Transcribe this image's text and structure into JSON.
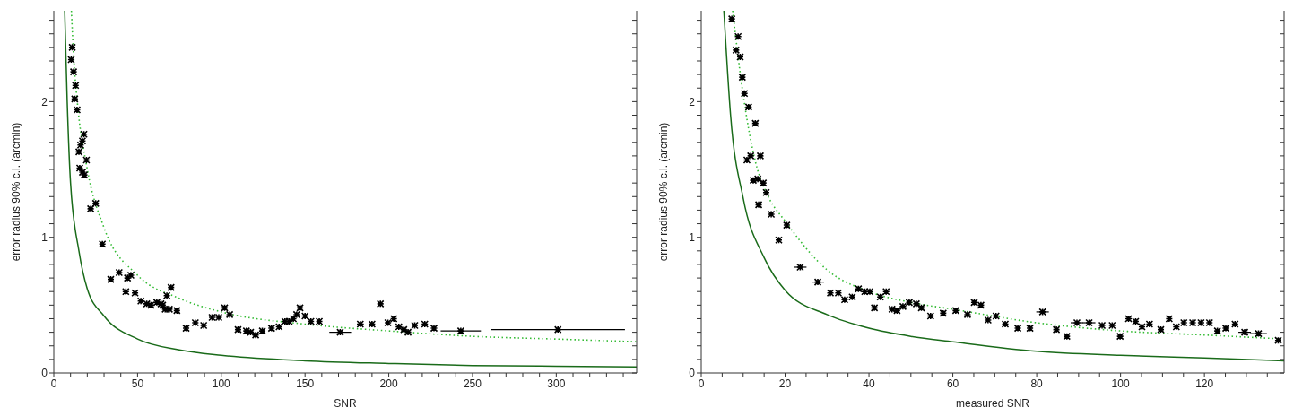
{
  "chart_data": [
    {
      "type": "scatter",
      "xlabel": "SNR",
      "ylabel": "error radius 90% c.l. (arcmin)",
      "marker": "cross",
      "xlim": [
        0,
        348
      ],
      "ylim": [
        0,
        2.67
      ],
      "xticks": [
        0,
        {
          "value": 10,
          "label": null
        },
        {
          "value": 20,
          "label": null
        },
        {
          "value": 30,
          "label": null
        },
        {
          "value": 40,
          "label": null
        },
        50,
        {
          "value": 60,
          "label": null
        },
        {
          "value": 70,
          "label": null
        },
        {
          "value": 80,
          "label": null
        },
        {
          "value": 90,
          "label": null
        },
        100,
        {
          "value": 110,
          "label": null
        },
        {
          "value": 120,
          "label": null
        },
        {
          "value": 130,
          "label": null
        },
        {
          "value": 140,
          "label": null
        },
        150,
        {
          "value": 160,
          "label": null
        },
        {
          "value": 170,
          "label": null
        },
        {
          "value": 180,
          "label": null
        },
        {
          "value": 190,
          "label": null
        },
        200,
        {
          "value": 210,
          "label": null
        },
        {
          "value": 220,
          "label": null
        },
        {
          "value": 230,
          "label": null
        },
        {
          "value": 240,
          "label": null
        },
        250,
        {
          "value": 260,
          "label": null
        },
        {
          "value": 270,
          "label": null
        },
        {
          "value": 280,
          "label": null
        },
        {
          "value": 290,
          "label": null
        },
        300,
        {
          "value": 310,
          "label": null
        },
        {
          "value": 320,
          "label": null
        },
        {
          "value": 330,
          "label": null
        },
        {
          "value": 340,
          "label": null
        }
      ],
      "yticks": [
        0,
        {
          "value": 0.1,
          "label": null
        },
        {
          "value": 0.2,
          "label": null
        },
        {
          "value": 0.3,
          "label": null
        },
        {
          "value": 0.4,
          "label": null
        },
        {
          "value": 0.5,
          "label": null
        },
        {
          "value": 0.6,
          "label": null
        },
        {
          "value": 0.7,
          "label": null
        },
        {
          "value": 0.8,
          "label": null
        },
        {
          "value": 0.9,
          "label": null
        },
        1,
        {
          "value": 1.1,
          "label": null
        },
        {
          "value": 1.2,
          "label": null
        },
        {
          "value": 1.3,
          "label": null
        },
        {
          "value": 1.4,
          "label": null
        },
        {
          "value": 1.5,
          "label": null
        },
        {
          "value": 1.6,
          "label": null
        },
        {
          "value": 1.7,
          "label": null
        },
        {
          "value": 1.8,
          "label": null
        },
        {
          "value": 1.9,
          "label": null
        },
        2,
        {
          "value": 2.1,
          "label": null
        },
        {
          "value": 2.2,
          "label": null
        },
        {
          "value": 2.3,
          "label": null
        },
        {
          "value": 2.4,
          "label": null
        },
        {
          "value": 2.5,
          "label": null
        },
        {
          "value": 2.6,
          "label": null
        }
      ],
      "series": [
        {
          "color": "#000000",
          "x": [
            11,
            10.4,
            11.8,
            13,
            12.5,
            13.9,
            18,
            17.1,
            16,
            15,
            19.5,
            15.5,
            17.1,
            18.2,
            22,
            25,
            29,
            34,
            39,
            44,
            46,
            43,
            48.5,
            52,
            55.5,
            58,
            61.5,
            64,
            65,
            66.5,
            67.5,
            70,
            69,
            73.5,
            79,
            84.5,
            89.5,
            94.5,
            98.5,
            102,
            105,
            110,
            115,
            117.5,
            120.5,
            124.5,
            130,
            134.5,
            138,
            140.5,
            143,
            145,
            147,
            150,
            153.5,
            158.5,
            171,
            183,
            190,
            195,
            199.5,
            203,
            206,
            209,
            211.5,
            215.5,
            221.5,
            227,
            243,
            301
          ],
          "values": [
            2.4,
            2.31,
            2.22,
            2.12,
            2.02,
            1.94,
            1.76,
            1.71,
            1.68,
            1.63,
            1.57,
            1.51,
            1.48,
            1.46,
            1.21,
            1.25,
            0.95,
            0.69,
            0.74,
            0.7,
            0.72,
            0.6,
            0.59,
            0.53,
            0.51,
            0.5,
            0.52,
            0.51,
            0.5,
            0.47,
            0.57,
            0.63,
            0.47,
            0.46,
            0.33,
            0.37,
            0.35,
            0.41,
            0.41,
            0.48,
            0.43,
            0.32,
            0.31,
            0.3,
            0.28,
            0.31,
            0.33,
            0.34,
            0.38,
            0.38,
            0.4,
            0.43,
            0.48,
            0.42,
            0.38,
            0.38,
            0.3,
            0.36,
            0.36,
            0.51,
            0.37,
            0.4,
            0.34,
            0.32,
            0.3,
            0.35,
            0.36,
            0.33,
            0.31,
            0.32
          ],
          "xerrors": [
            null,
            null,
            null,
            null,
            null,
            null,
            null,
            null,
            null,
            null,
            null,
            null,
            null,
            null,
            null,
            null,
            null,
            null,
            null,
            null,
            null,
            null,
            null,
            null,
            null,
            null,
            null,
            null,
            null,
            null,
            null,
            null,
            null,
            null,
            null,
            null,
            null,
            null,
            null,
            null,
            null,
            null,
            null,
            null,
            null,
            null,
            null,
            null,
            null,
            null,
            null,
            null,
            null,
            null,
            null,
            null,
            6.5,
            2,
            null,
            null,
            null,
            null,
            null,
            null,
            null,
            null,
            null,
            null,
            12,
            40
          ]
        },
        {
          "type": "line",
          "color": "#1a6b1a",
          "line_style": "solid",
          "marker": "none",
          "x": [
            6.5,
            8,
            10,
            15,
            20,
            30,
            50,
            75,
            100,
            150,
            200,
            250,
            300,
            348
          ],
          "values": [
            2.67,
            2,
            1.4,
            0.9,
            0.62,
            0.42,
            0.25,
            0.17,
            0.13,
            0.09,
            0.07,
            0.055,
            0.05,
            0.045
          ]
        },
        {
          "type": "line",
          "color": "#33bb33",
          "line_style": "dotted",
          "marker": "none",
          "x": [
            10.5,
            12,
            14,
            20,
            30,
            50,
            75,
            100,
            150,
            200,
            250,
            300,
            348
          ],
          "values": [
            2.67,
            2.3,
            2,
            1.5,
            1.07,
            0.72,
            0.55,
            0.45,
            0.36,
            0.31,
            0.27,
            0.25,
            0.23
          ]
        }
      ]
    },
    {
      "type": "scatter",
      "xlabel": "measured SNR",
      "ylabel": "error radius 90% c.l. (arcmin)",
      "marker": "cross",
      "xlim": [
        0,
        139
      ],
      "ylim": [
        0,
        2.67
      ],
      "xticks": [
        0,
        {
          "value": 5,
          "label": null
        },
        {
          "value": 10,
          "label": null
        },
        {
          "value": 15,
          "label": null
        },
        20,
        {
          "value": 25,
          "label": null
        },
        {
          "value": 30,
          "label": null
        },
        {
          "value": 35,
          "label": null
        },
        40,
        {
          "value": 45,
          "label": null
        },
        {
          "value": 50,
          "label": null
        },
        {
          "value": 55,
          "label": null
        },
        60,
        {
          "value": 65,
          "label": null
        },
        {
          "value": 70,
          "label": null
        },
        {
          "value": 75,
          "label": null
        },
        80,
        {
          "value": 85,
          "label": null
        },
        {
          "value": 90,
          "label": null
        },
        {
          "value": 95,
          "label": null
        },
        100,
        {
          "value": 105,
          "label": null
        },
        {
          "value": 110,
          "label": null
        },
        {
          "value": 115,
          "label": null
        },
        120,
        {
          "value": 125,
          "label": null
        },
        {
          "value": 130,
          "label": null
        },
        {
          "value": 135,
          "label": null
        }
      ],
      "yticks": [
        0,
        {
          "value": 0.1,
          "label": null
        },
        {
          "value": 0.2,
          "label": null
        },
        {
          "value": 0.3,
          "label": null
        },
        {
          "value": 0.4,
          "label": null
        },
        {
          "value": 0.5,
          "label": null
        },
        {
          "value": 0.6,
          "label": null
        },
        {
          "value": 0.7,
          "label": null
        },
        {
          "value": 0.8,
          "label": null
        },
        {
          "value": 0.9,
          "label": null
        },
        1,
        {
          "value": 1.1,
          "label": null
        },
        {
          "value": 1.2,
          "label": null
        },
        {
          "value": 1.3,
          "label": null
        },
        {
          "value": 1.4,
          "label": null
        },
        {
          "value": 1.5,
          "label": null
        },
        {
          "value": 1.6,
          "label": null
        },
        {
          "value": 1.7,
          "label": null
        },
        {
          "value": 1.8,
          "label": null
        },
        {
          "value": 1.9,
          "label": null
        },
        2,
        {
          "value": 2.1,
          "label": null
        },
        {
          "value": 2.2,
          "label": null
        },
        {
          "value": 2.3,
          "label": null
        },
        {
          "value": 2.4,
          "label": null
        },
        {
          "value": 2.5,
          "label": null
        },
        {
          "value": 2.6,
          "label": null
        }
      ],
      "series": [
        {
          "color": "#000000",
          "x": [
            7.3,
            8.8,
            8.3,
            9.3,
            9.8,
            10.3,
            11.3,
            12.9,
            10.9,
            11.8,
            14.1,
            12.4,
            13.5,
            14.8,
            15.5,
            13.7,
            16.7,
            20.4,
            18.5,
            23.6,
            27.8,
            30.8,
            32.7,
            34.2,
            36,
            37.5,
            39,
            40.2,
            41.3,
            42.7,
            44.1,
            45.5,
            46.7,
            48.1,
            49.6,
            51.3,
            52.5,
            54.7,
            57.7,
            60.7,
            63.5,
            65.1,
            66.7,
            68.4,
            70.3,
            72.5,
            75.5,
            78.4,
            81.4,
            84.7,
            87.2,
            89.6,
            92.5,
            95.6,
            98,
            99.9,
            101.9,
            103.6,
            105.1,
            106.9,
            109.6,
            111.6,
            113.3,
            115.1,
            117.2,
            119.2,
            121.2,
            123.1,
            125.1,
            127.3,
            129.6,
            132.9,
            137.6
          ],
          "values": [
            2.61,
            2.48,
            2.38,
            2.33,
            2.18,
            2.06,
            1.96,
            1.84,
            1.57,
            1.6,
            1.6,
            1.42,
            1.43,
            1.4,
            1.33,
            1.24,
            1.17,
            1.09,
            0.98,
            0.78,
            0.67,
            0.59,
            0.59,
            0.54,
            0.56,
            0.62,
            0.6,
            0.6,
            0.48,
            0.56,
            0.6,
            0.47,
            0.46,
            0.49,
            0.52,
            0.51,
            0.48,
            0.42,
            0.44,
            0.46,
            0.43,
            0.52,
            0.5,
            0.39,
            0.42,
            0.36,
            0.33,
            0.33,
            0.45,
            0.32,
            0.27,
            0.37,
            0.37,
            0.35,
            0.35,
            0.27,
            0.4,
            0.38,
            0.34,
            0.36,
            0.32,
            0.4,
            0.34,
            0.37,
            0.37,
            0.37,
            0.37,
            0.31,
            0.33,
            0.36,
            0.3,
            0.29,
            0.24
          ],
          "xerrors": [
            null,
            null,
            null,
            null,
            null,
            null,
            null,
            null,
            null,
            null,
            null,
            null,
            null,
            null,
            null,
            null,
            null,
            null,
            null,
            1.5,
            1.5,
            null,
            null,
            null,
            null,
            null,
            null,
            null,
            null,
            null,
            null,
            null,
            null,
            null,
            null,
            null,
            null,
            null,
            null,
            null,
            null,
            null,
            null,
            null,
            null,
            null,
            null,
            null,
            1.5,
            null,
            null,
            1.5,
            1.5,
            null,
            null,
            null,
            null,
            null,
            null,
            null,
            null,
            null,
            null,
            null,
            null,
            null,
            null,
            null,
            null,
            null,
            1.5,
            2,
            null
          ]
        },
        {
          "type": "line",
          "color": "#1a6b1a",
          "line_style": "solid",
          "marker": "none",
          "x": [
            5.4,
            7,
            10,
            15,
            20,
            30,
            40,
            50,
            60,
            80,
            100,
            120,
            139
          ],
          "values": [
            2.67,
            1.9,
            1.29,
            0.85,
            0.61,
            0.43,
            0.33,
            0.27,
            0.23,
            0.16,
            0.13,
            0.11,
            0.09
          ]
        },
        {
          "type": "line",
          "color": "#33bb33",
          "line_style": "dotted",
          "marker": "none",
          "x": [
            7.5,
            10,
            12.9,
            16,
            20,
            30,
            40,
            50,
            60,
            80,
            100,
            120,
            139
          ],
          "values": [
            2.67,
            2.05,
            1.56,
            1.3,
            1.12,
            0.76,
            0.6,
            0.52,
            0.47,
            0.37,
            0.31,
            0.28,
            0.25
          ]
        }
      ]
    }
  ]
}
